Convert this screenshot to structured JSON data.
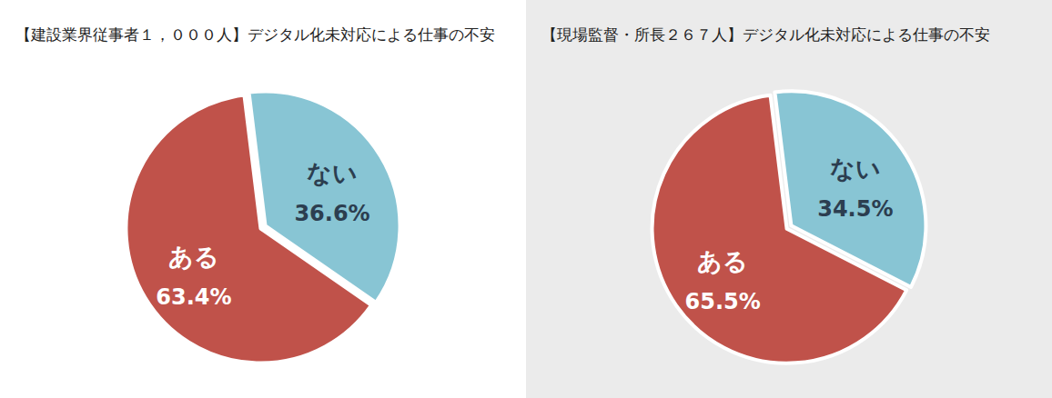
{
  "chart_data": [
    {
      "type": "pie",
      "title": "【建設業界従事者１，０００人】デジタル化未対応による仕事の不安",
      "categories": [
        "ある",
        "ない"
      ],
      "values": [
        63.4,
        36.6
      ],
      "value_labels": [
        "63.4%",
        "36.6%"
      ],
      "colors": [
        "#c0524a",
        "#88c5d4"
      ],
      "data_labels": true
    },
    {
      "type": "pie",
      "title": "【現場監督・所長２６７人】デジタル化未対応による仕事の不安",
      "categories": [
        "ある",
        "ない"
      ],
      "values": [
        65.5,
        34.5
      ],
      "value_labels": [
        "65.5%",
        "34.5%"
      ],
      "colors": [
        "#c0524a",
        "#88c5d4"
      ],
      "data_labels": true
    }
  ]
}
